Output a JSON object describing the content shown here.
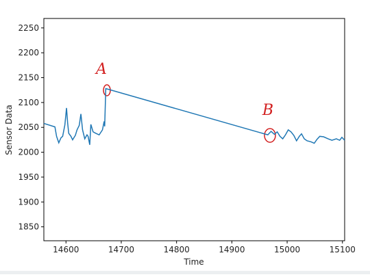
{
  "chart_data": {
    "type": "line",
    "xlabel": "Time",
    "ylabel": "Sensor Data",
    "annotations": [
      "A",
      "B"
    ],
    "x": [
      14560,
      14580,
      14583,
      14587,
      14591,
      14594,
      14598,
      14601,
      14603,
      14605,
      14609,
      14612,
      14617,
      14620,
      14624,
      14627,
      14630,
      14634,
      14638,
      14640,
      14643,
      14645,
      14649,
      14654,
      14660,
      14666,
      14669,
      14670,
      14672,
      14965,
      14971,
      14977,
      14982,
      14987,
      14992,
      14997,
      15002,
      15007,
      15012,
      15017,
      15022,
      15026,
      15031,
      15036,
      15043,
      15049,
      15054,
      15059,
      15066,
      15074,
      15081,
      15089,
      15095,
      15099,
      15104
    ],
    "series": [
      {
        "color": "#1f77b4",
        "values": [
          2058,
          2051,
          2032,
          2019,
          2029,
          2032,
          2055,
          2089,
          2059,
          2038,
          2032,
          2025,
          2034,
          2045,
          2054,
          2077,
          2045,
          2027,
          2035,
          2032,
          2015,
          2056,
          2041,
          2038,
          2035,
          2045,
          2062,
          2052,
          2128,
          2035,
          2042,
          2036,
          2041,
          2032,
          2027,
          2035,
          2045,
          2041,
          2034,
          2023,
          2032,
          2037,
          2027,
          2023,
          2021,
          2018,
          2026,
          2032,
          2031,
          2027,
          2024,
          2027,
          2024,
          2030,
          2024
        ]
      }
    ],
    "xlim": [
      14560,
      15104
    ],
    "ylim": [
      1822,
      2269
    ],
    "xticks": [
      14600,
      14700,
      14800,
      14900,
      15000,
      15100
    ],
    "yticks": [
      1850,
      1900,
      1950,
      2000,
      2050,
      2100,
      2150,
      2200,
      2250
    ]
  }
}
